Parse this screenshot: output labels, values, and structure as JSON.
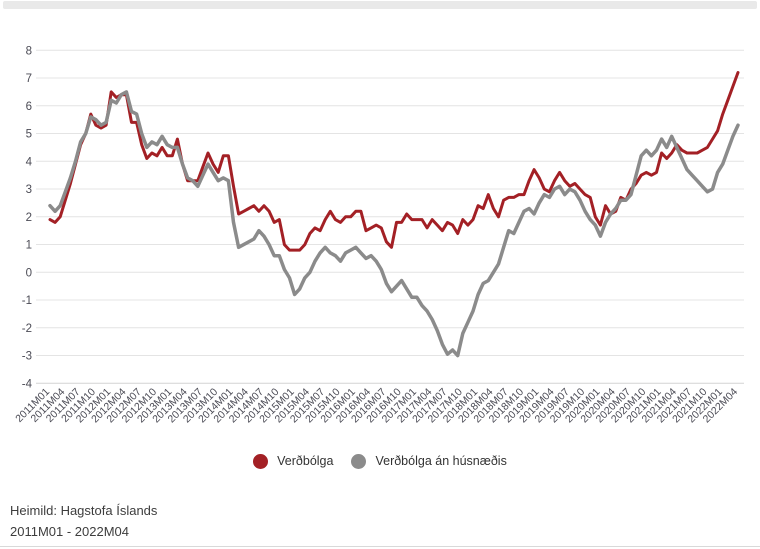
{
  "chart_data": {
    "type": "line",
    "title": "",
    "xlabel": "",
    "ylabel": "",
    "ylim": [
      -4,
      8
    ],
    "y_ticks": [
      8,
      7,
      6,
      5,
      4,
      3,
      2,
      1,
      0,
      -1,
      -2,
      -3,
      -4
    ],
    "grid": "horizontal",
    "legend_position": "bottom-center",
    "x_tick_every": 3,
    "x_months": [
      "2011M01",
      "2011M02",
      "2011M03",
      "2011M04",
      "2011M05",
      "2011M06",
      "2011M07",
      "2011M08",
      "2011M09",
      "2011M10",
      "2011M11",
      "2011M12",
      "2012M01",
      "2012M02",
      "2012M03",
      "2012M04",
      "2012M05",
      "2012M06",
      "2012M07",
      "2012M08",
      "2012M09",
      "2012M10",
      "2012M11",
      "2012M12",
      "2013M01",
      "2013M02",
      "2013M03",
      "2013M04",
      "2013M05",
      "2013M06",
      "2013M07",
      "2013M08",
      "2013M09",
      "2013M10",
      "2013M11",
      "2013M12",
      "2014M01",
      "2014M02",
      "2014M03",
      "2014M04",
      "2014M05",
      "2014M06",
      "2014M07",
      "2014M08",
      "2014M09",
      "2014M10",
      "2014M11",
      "2014M12",
      "2015M01",
      "2015M02",
      "2015M03",
      "2015M04",
      "2015M05",
      "2015M06",
      "2015M07",
      "2015M08",
      "2015M09",
      "2015M10",
      "2015M11",
      "2015M12",
      "2016M01",
      "2016M02",
      "2016M03",
      "2016M04",
      "2016M05",
      "2016M06",
      "2016M07",
      "2016M08",
      "2016M09",
      "2016M10",
      "2016M11",
      "2016M12",
      "2017M01",
      "2017M02",
      "2017M03",
      "2017M04",
      "2017M05",
      "2017M06",
      "2017M07",
      "2017M08",
      "2017M09",
      "2017M10",
      "2017M11",
      "2017M12",
      "2018M01",
      "2018M02",
      "2018M03",
      "2018M04",
      "2018M05",
      "2018M06",
      "2018M07",
      "2018M08",
      "2018M09",
      "2018M10",
      "2018M11",
      "2018M12",
      "2019M01",
      "2019M02",
      "2019M03",
      "2019M04",
      "2019M05",
      "2019M06",
      "2019M07",
      "2019M08",
      "2019M09",
      "2019M10",
      "2019M11",
      "2019M12",
      "2020M01",
      "2020M02",
      "2020M03",
      "2020M04",
      "2020M05",
      "2020M06",
      "2020M07",
      "2020M08",
      "2020M09",
      "2020M10",
      "2020M11",
      "2020M12",
      "2021M01",
      "2021M02",
      "2021M03",
      "2021M04",
      "2021M05",
      "2021M06",
      "2021M07",
      "2021M08",
      "2021M09",
      "2021M10",
      "2021M11",
      "2021M12",
      "2022M01",
      "2022M02",
      "2022M03",
      "2022M04"
    ],
    "series": [
      {
        "name": "Verðbólga",
        "color": "#a32025",
        "line_width": 3,
        "values": [
          1.9,
          1.8,
          2.0,
          2.6,
          3.2,
          3.9,
          4.6,
          5.0,
          5.7,
          5.3,
          5.2,
          5.3,
          6.5,
          6.3,
          6.4,
          6.4,
          5.4,
          5.4,
          4.6,
          4.1,
          4.3,
          4.2,
          4.5,
          4.2,
          4.2,
          4.8,
          3.9,
          3.3,
          3.3,
          3.3,
          3.8,
          4.3,
          3.9,
          3.6,
          4.2,
          4.2,
          3.1,
          2.1,
          2.2,
          2.3,
          2.4,
          2.2,
          2.4,
          2.2,
          1.8,
          1.9,
          1.0,
          0.8,
          0.8,
          0.8,
          1.0,
          1.4,
          1.6,
          1.5,
          1.9,
          2.2,
          1.9,
          1.8,
          2.0,
          2.0,
          2.2,
          2.2,
          1.5,
          1.6,
          1.7,
          1.6,
          1.1,
          0.9,
          1.8,
          1.8,
          2.1,
          1.9,
          1.9,
          1.9,
          1.6,
          1.9,
          1.7,
          1.5,
          1.8,
          1.7,
          1.4,
          1.9,
          1.7,
          1.9,
          2.4,
          2.3,
          2.8,
          2.3,
          2.0,
          2.6,
          2.7,
          2.7,
          2.8,
          2.8,
          3.3,
          3.7,
          3.4,
          3.0,
          2.9,
          3.3,
          3.6,
          3.3,
          3.1,
          3.2,
          3.0,
          2.8,
          2.7,
          2.0,
          1.7,
          2.4,
          2.1,
          2.2,
          2.7,
          2.6,
          3.0,
          3.2,
          3.5,
          3.6,
          3.5,
          3.6,
          4.3,
          4.1,
          4.3,
          4.6,
          4.4,
          4.3,
          4.3,
          4.3,
          4.4,
          4.5,
          4.8,
          5.1,
          5.7,
          6.2,
          6.7,
          7.2
        ]
      },
      {
        "name": "Verðbólga án húsnæðis",
        "color": "#8b8b8b",
        "line_width": 3.5,
        "values": [
          2.4,
          2.2,
          2.4,
          2.9,
          3.4,
          4.0,
          4.7,
          5.0,
          5.6,
          5.5,
          5.3,
          5.4,
          6.2,
          6.1,
          6.4,
          6.5,
          5.8,
          5.7,
          5.0,
          4.5,
          4.7,
          4.6,
          4.9,
          4.6,
          4.5,
          4.5,
          3.9,
          3.4,
          3.3,
          3.1,
          3.5,
          3.9,
          3.6,
          3.3,
          3.4,
          3.3,
          1.8,
          0.9,
          1.0,
          1.1,
          1.2,
          1.5,
          1.3,
          1.0,
          0.6,
          0.6,
          0.1,
          -0.2,
          -0.8,
          -0.6,
          -0.2,
          0.0,
          0.4,
          0.7,
          0.9,
          0.7,
          0.6,
          0.4,
          0.7,
          0.8,
          0.9,
          0.7,
          0.5,
          0.6,
          0.4,
          0.1,
          -0.4,
          -0.7,
          -0.5,
          -0.3,
          -0.6,
          -0.9,
          -0.9,
          -1.2,
          -1.4,
          -1.7,
          -2.1,
          -2.6,
          -2.95,
          -2.8,
          -3.0,
          -2.2,
          -1.8,
          -1.4,
          -0.8,
          -0.4,
          -0.3,
          0.0,
          0.3,
          0.9,
          1.5,
          1.4,
          1.8,
          2.2,
          2.3,
          2.1,
          2.5,
          2.8,
          2.7,
          3.0,
          3.1,
          2.8,
          3.0,
          2.9,
          2.6,
          2.2,
          1.9,
          1.7,
          1.3,
          1.8,
          2.1,
          2.3,
          2.6,
          2.6,
          2.8,
          3.5,
          4.2,
          4.4,
          4.2,
          4.4,
          4.8,
          4.5,
          4.9,
          4.5,
          4.1,
          3.7,
          3.5,
          3.3,
          3.1,
          2.9,
          3.0,
          3.6,
          3.9,
          4.4,
          4.9,
          5.3
        ]
      }
    ],
    "axis_label_color": "#4b4b55",
    "gridline_color": "#e4e4e4",
    "axis_line_color": "#d4d4d4"
  },
  "legend": {
    "items": [
      {
        "label": "Verðbólga",
        "color": "#a32025"
      },
      {
        "label": "Verðbólga án húsnæðis",
        "color": "#8b8b8b"
      }
    ]
  },
  "footer": {
    "source": "Heimild: Hagstofa Íslands",
    "range": "2011M01 - 2022M04"
  }
}
